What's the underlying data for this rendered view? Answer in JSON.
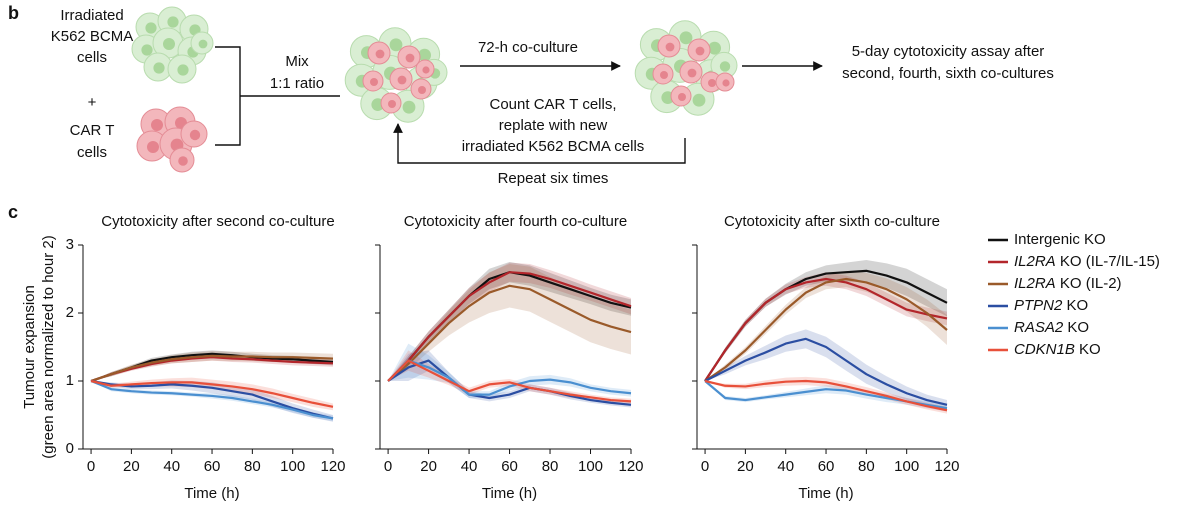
{
  "diagram": {
    "panel_b": "b",
    "panel_c": "c",
    "input_a": [
      "Irradiated",
      "K562 BCMA",
      "cells"
    ],
    "plus": "+",
    "input_b": [
      "CAR T",
      "cells"
    ],
    "mix": [
      "Mix",
      "1:1 ratio"
    ],
    "coculture": "72-h co-culture",
    "replate": [
      "Count CAR T cells,",
      "replate with new",
      "irradiated K562 BCMA cells"
    ],
    "repeat": "Repeat six times",
    "assay": [
      "5-day cytotoxicity assay after",
      "second, fourth, sixth co-cultures"
    ]
  },
  "chart_data": [
    {
      "type": "line",
      "title": "Cytotoxicity after second co-culture",
      "x_label": "Time (h)",
      "y_label": [
        "Tumour expansion",
        "(green area normalized to hour 2)"
      ],
      "legend": "right",
      "x": [
        0,
        10,
        20,
        30,
        40,
        50,
        60,
        70,
        80,
        90,
        100,
        110,
        120
      ],
      "xlim": [
        -4,
        120
      ],
      "xticks": [
        0,
        20,
        40,
        60,
        80,
        100,
        120
      ],
      "ylim": [
        0,
        3
      ],
      "yticks": [
        0,
        1,
        2,
        3
      ],
      "series": [
        {
          "name": "Intergenic KO",
          "color": "#111111",
          "values": [
            1,
            1.1,
            1.2,
            1.3,
            1.35,
            1.38,
            1.4,
            1.38,
            1.35,
            1.33,
            1.32,
            1.3,
            1.28
          ],
          "error": [
            0,
            0.03,
            0.03,
            0.04,
            0.04,
            0.05,
            0.05,
            0.05,
            0.05,
            0.05,
            0.05,
            0.05,
            0.05
          ]
        },
        {
          "name": "IL2RA KO (IL-7/IL-15)",
          "color": "#b3262b",
          "values": [
            1,
            1.1,
            1.18,
            1.25,
            1.3,
            1.33,
            1.35,
            1.33,
            1.32,
            1.3,
            1.28,
            1.27,
            1.26
          ],
          "error": [
            0,
            0.03,
            0.03,
            0.04,
            0.04,
            0.05,
            0.05,
            0.05,
            0.05,
            0.05,
            0.05,
            0.05,
            0.05
          ]
        },
        {
          "name": "IL2RA KO (IL-2)",
          "color": "#9a5a2a",
          "values": [
            1,
            1.1,
            1.2,
            1.27,
            1.32,
            1.35,
            1.37,
            1.36,
            1.36,
            1.35,
            1.35,
            1.34,
            1.33
          ],
          "error": [
            0,
            0.03,
            0.04,
            0.05,
            0.06,
            0.07,
            0.07,
            0.07,
            0.07,
            0.07,
            0.07,
            0.07,
            0.07
          ]
        },
        {
          "name": "PTPN2 KO",
          "color": "#2b4ea2",
          "values": [
            1,
            0.95,
            0.92,
            0.93,
            0.95,
            0.93,
            0.9,
            0.85,
            0.8,
            0.7,
            0.6,
            0.52,
            0.45
          ],
          "error": [
            0,
            0.03,
            0.04,
            0.05,
            0.06,
            0.07,
            0.08,
            0.08,
            0.08,
            0.08,
            0.07,
            0.06,
            0.05
          ]
        },
        {
          "name": "RASA2 KO",
          "color": "#4a8fd0",
          "values": [
            1,
            0.88,
            0.85,
            0.83,
            0.82,
            0.8,
            0.78,
            0.75,
            0.7,
            0.65,
            0.58,
            0.5,
            0.45
          ],
          "error": [
            0,
            0.03,
            0.03,
            0.03,
            0.03,
            0.03,
            0.04,
            0.04,
            0.04,
            0.04,
            0.04,
            0.04,
            0.04
          ]
        },
        {
          "name": "CDKN1B KO",
          "color": "#e8503a",
          "values": [
            1,
            0.93,
            0.95,
            0.97,
            0.98,
            0.98,
            0.95,
            0.92,
            0.88,
            0.82,
            0.75,
            0.68,
            0.62
          ],
          "error": [
            0,
            0.03,
            0.04,
            0.05,
            0.06,
            0.07,
            0.07,
            0.07,
            0.07,
            0.07,
            0.06,
            0.06,
            0.05
          ]
        }
      ]
    },
    {
      "type": "line",
      "title": "Cytotoxicity after fourth co-culture",
      "x_label": "Time (h)",
      "x": [
        0,
        10,
        20,
        30,
        40,
        50,
        60,
        70,
        80,
        90,
        100,
        110,
        120
      ],
      "xlim": [
        -4,
        120
      ],
      "xticks": [
        0,
        20,
        40,
        60,
        80,
        100,
        120
      ],
      "ylim": [
        0,
        3
      ],
      "yticks": [
        0,
        1,
        2,
        3
      ],
      "series": [
        {
          "color": "#111111",
          "values": [
            1,
            1.3,
            1.65,
            1.95,
            2.25,
            2.5,
            2.6,
            2.55,
            2.45,
            2.35,
            2.25,
            2.15,
            2.08
          ],
          "error": [
            0,
            0.06,
            0.08,
            0.1,
            0.12,
            0.15,
            0.15,
            0.15,
            0.14,
            0.13,
            0.12,
            0.12,
            0.12
          ]
        },
        {
          "color": "#b3262b",
          "values": [
            1,
            1.3,
            1.65,
            1.95,
            2.25,
            2.45,
            2.6,
            2.58,
            2.5,
            2.4,
            2.3,
            2.2,
            2.1
          ],
          "error": [
            0,
            0.06,
            0.08,
            0.1,
            0.12,
            0.14,
            0.14,
            0.14,
            0.13,
            0.13,
            0.12,
            0.12,
            0.12
          ]
        },
        {
          "color": "#9a5a2a",
          "values": [
            1,
            1.25,
            1.55,
            1.85,
            2.1,
            2.3,
            2.4,
            2.35,
            2.2,
            2.05,
            1.9,
            1.8,
            1.72
          ],
          "error": [
            0,
            0.08,
            0.12,
            0.18,
            0.24,
            0.3,
            0.32,
            0.33,
            0.33,
            0.33,
            0.33,
            0.33,
            0.33
          ]
        },
        {
          "color": "#2b4ea2",
          "values": [
            1,
            1.2,
            1.3,
            1.05,
            0.8,
            0.75,
            0.8,
            0.9,
            0.85,
            0.78,
            0.72,
            0.68,
            0.65
          ],
          "error": [
            0,
            0.2,
            0.15,
            0.08,
            0.05,
            0.05,
            0.05,
            0.05,
            0.05,
            0.05,
            0.04,
            0.04,
            0.04
          ]
        },
        {
          "color": "#4a8fd0",
          "values": [
            1,
            1.3,
            1.2,
            1.05,
            0.8,
            0.8,
            0.92,
            1.0,
            1.02,
            0.98,
            0.9,
            0.85,
            0.82
          ],
          "error": [
            0,
            0.25,
            0.18,
            0.08,
            0.05,
            0.05,
            0.06,
            0.07,
            0.07,
            0.06,
            0.05,
            0.05,
            0.05
          ]
        },
        {
          "color": "#e8503a",
          "values": [
            1,
            1.3,
            1.15,
            1.0,
            0.85,
            0.95,
            0.98,
            0.9,
            0.85,
            0.8,
            0.76,
            0.72,
            0.7
          ],
          "error": [
            0,
            0.15,
            0.1,
            0.06,
            0.05,
            0.05,
            0.05,
            0.05,
            0.05,
            0.05,
            0.04,
            0.04,
            0.04
          ]
        }
      ]
    },
    {
      "type": "line",
      "title": "Cytotoxicity after sixth co-culture",
      "x_label": "Time (h)",
      "x": [
        0,
        10,
        20,
        30,
        40,
        50,
        60,
        70,
        80,
        90,
        100,
        110,
        120
      ],
      "xlim": [
        -4,
        120
      ],
      "xticks": [
        0,
        20,
        40,
        60,
        80,
        100,
        120
      ],
      "ylim": [
        0,
        3
      ],
      "yticks": [
        0,
        1,
        2,
        3
      ],
      "series": [
        {
          "color": "#111111",
          "values": [
            1,
            1.45,
            1.85,
            2.15,
            2.35,
            2.5,
            2.58,
            2.6,
            2.62,
            2.55,
            2.45,
            2.3,
            2.15
          ],
          "error": [
            0,
            0.04,
            0.05,
            0.06,
            0.08,
            0.1,
            0.12,
            0.14,
            0.16,
            0.18,
            0.2,
            0.2,
            0.2
          ]
        },
        {
          "color": "#b3262b",
          "values": [
            1,
            1.45,
            1.85,
            2.15,
            2.35,
            2.45,
            2.5,
            2.45,
            2.35,
            2.2,
            2.05,
            1.98,
            1.92
          ],
          "error": [
            0,
            0.04,
            0.05,
            0.06,
            0.07,
            0.08,
            0.1,
            0.1,
            0.1,
            0.1,
            0.1,
            0.1,
            0.1
          ]
        },
        {
          "color": "#9a5a2a",
          "values": [
            1,
            1.2,
            1.45,
            1.75,
            2.05,
            2.3,
            2.45,
            2.5,
            2.45,
            2.35,
            2.2,
            2.0,
            1.75
          ],
          "error": [
            0,
            0.04,
            0.05,
            0.06,
            0.07,
            0.08,
            0.1,
            0.12,
            0.14,
            0.16,
            0.18,
            0.2,
            0.22
          ]
        },
        {
          "color": "#2b4ea2",
          "values": [
            1,
            1.15,
            1.3,
            1.42,
            1.55,
            1.62,
            1.5,
            1.3,
            1.1,
            0.95,
            0.82,
            0.72,
            0.65
          ],
          "error": [
            0,
            0.05,
            0.07,
            0.1,
            0.12,
            0.14,
            0.15,
            0.15,
            0.14,
            0.12,
            0.1,
            0.08,
            0.07
          ]
        },
        {
          "color": "#4a8fd0",
          "values": [
            1,
            0.75,
            0.72,
            0.76,
            0.8,
            0.84,
            0.88,
            0.86,
            0.8,
            0.75,
            0.7,
            0.65,
            0.6
          ],
          "error": [
            0,
            0.03,
            0.03,
            0.03,
            0.04,
            0.05,
            0.06,
            0.06,
            0.06,
            0.06,
            0.05,
            0.05,
            0.05
          ]
        },
        {
          "color": "#e8503a",
          "values": [
            1,
            0.93,
            0.92,
            0.96,
            0.99,
            1.0,
            0.98,
            0.92,
            0.85,
            0.78,
            0.7,
            0.63,
            0.57
          ],
          "error": [
            0,
            0.03,
            0.04,
            0.05,
            0.06,
            0.06,
            0.06,
            0.06,
            0.06,
            0.05,
            0.05,
            0.05,
            0.05
          ]
        }
      ]
    }
  ]
}
